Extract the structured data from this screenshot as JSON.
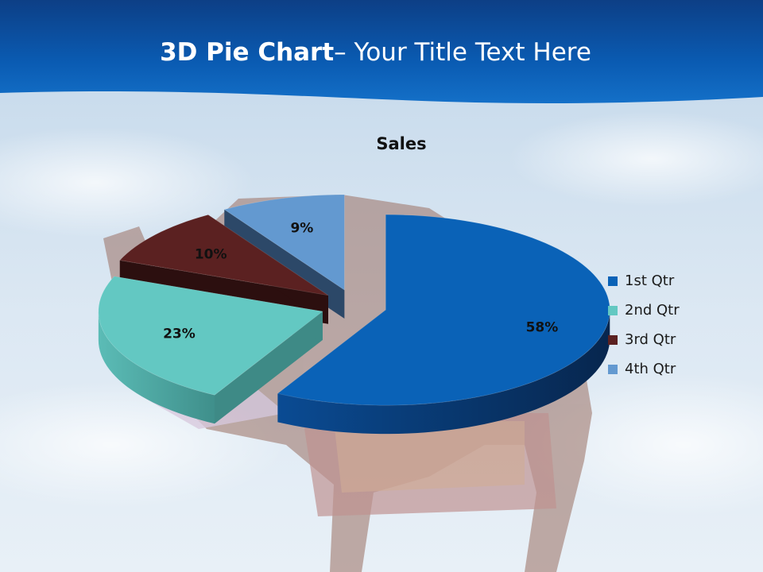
{
  "slide": {
    "title_bold": "3D Pie Chart",
    "title_rest": "– Your Title Text Here"
  },
  "chart_data": {
    "type": "pie",
    "variant": "3d-exploded",
    "title": "Sales",
    "categories": [
      "1st Qtr",
      "2nd Qtr",
      "3rd Qtr",
      "4th Qtr"
    ],
    "values": [
      58,
      23,
      10,
      9
    ],
    "data_labels": [
      "58%",
      "23%",
      "10%",
      "9%"
    ],
    "colors": [
      "#0a62b7",
      "#63c8c2",
      "#5b2121",
      "#6399d0"
    ],
    "legend": "right"
  }
}
